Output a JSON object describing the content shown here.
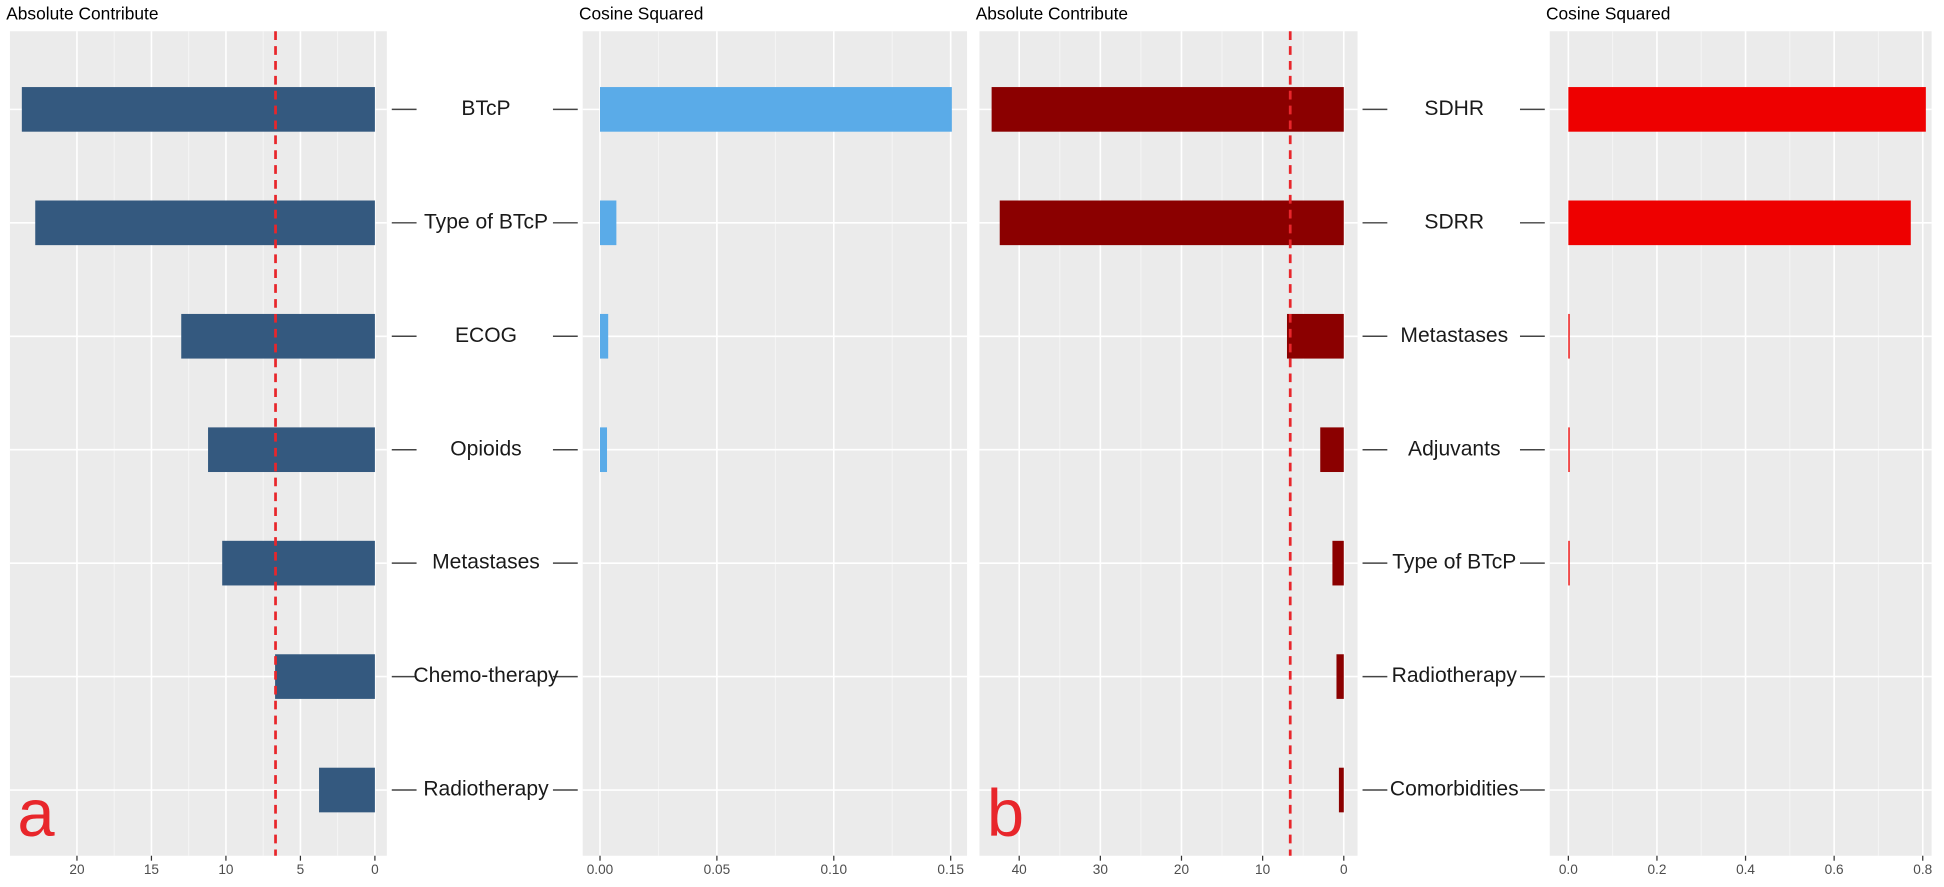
{
  "chart_data": [
    {
      "type": "bar",
      "orientation": "horizontal",
      "panel_label": "a",
      "categories": [
        "BTcP",
        "Type of BTcP",
        "ECOG",
        "Opioids",
        "Metastases",
        "Chemo-therapy",
        "Radiotherapy"
      ],
      "panels": [
        {
          "title": "Absolute Contribute",
          "values": [
            23.7,
            22.8,
            13.0,
            11.2,
            10.25,
            6.7,
            3.75
          ],
          "color": "#34597f",
          "xlim": [
            24.5,
            -0.8
          ],
          "xticks": [
            20,
            15,
            10,
            5,
            0
          ],
          "grid": true,
          "reference_line": {
            "value": 6.67,
            "color": "#e8262b",
            "style": "dashed"
          }
        },
        {
          "title": "Cosine Squared",
          "values": [
            0.1505,
            0.007,
            0.0035,
            0.003,
            0,
            0,
            0
          ],
          "color": "#5aabe8",
          "xlim": [
            -0.0074,
            0.157
          ],
          "xticks": [
            {
              "value": 0,
              "label": "0.00"
            },
            {
              "value": 0.05,
              "label": "0.05"
            },
            {
              "value": 0.1,
              "label": "0.10"
            },
            {
              "value": 0.15,
              "label": "0.15"
            }
          ],
          "grid": true
        }
      ]
    },
    {
      "type": "bar",
      "orientation": "horizontal",
      "panel_label": "b",
      "categories": [
        "SDHR",
        "SDRR",
        "Metastases",
        "Adjuvants",
        "Type of BTcP",
        "Radiotherapy",
        "Comorbidities"
      ],
      "panels": [
        {
          "title": "Absolute Contribute",
          "values": [
            43.4,
            42.4,
            7.0,
            2.9,
            1.4,
            0.9,
            0.6
          ],
          "color": "#8b0000",
          "xlim": [
            44.9,
            -1.7
          ],
          "xticks": [
            40,
            30,
            20,
            10,
            0
          ],
          "grid": true,
          "reference_line": {
            "value": 6.6,
            "color": "#e8262b",
            "style": "dashed"
          }
        },
        {
          "title": "Cosine Squared",
          "values": [
            0.807,
            0.773,
            0.003,
            0.003,
            0.003,
            0,
            0
          ],
          "color": "#ee0000",
          "xlim": [
            -0.042,
            0.82
          ],
          "xticks": [
            {
              "value": 0,
              "label": "0.0"
            },
            {
              "value": 0.2,
              "label": "0.2"
            },
            {
              "value": 0.4,
              "label": "0.4"
            },
            {
              "value": 0.6,
              "label": "0.6"
            },
            {
              "value": 0.8,
              "label": "0.8"
            }
          ],
          "grid": true
        }
      ]
    }
  ]
}
